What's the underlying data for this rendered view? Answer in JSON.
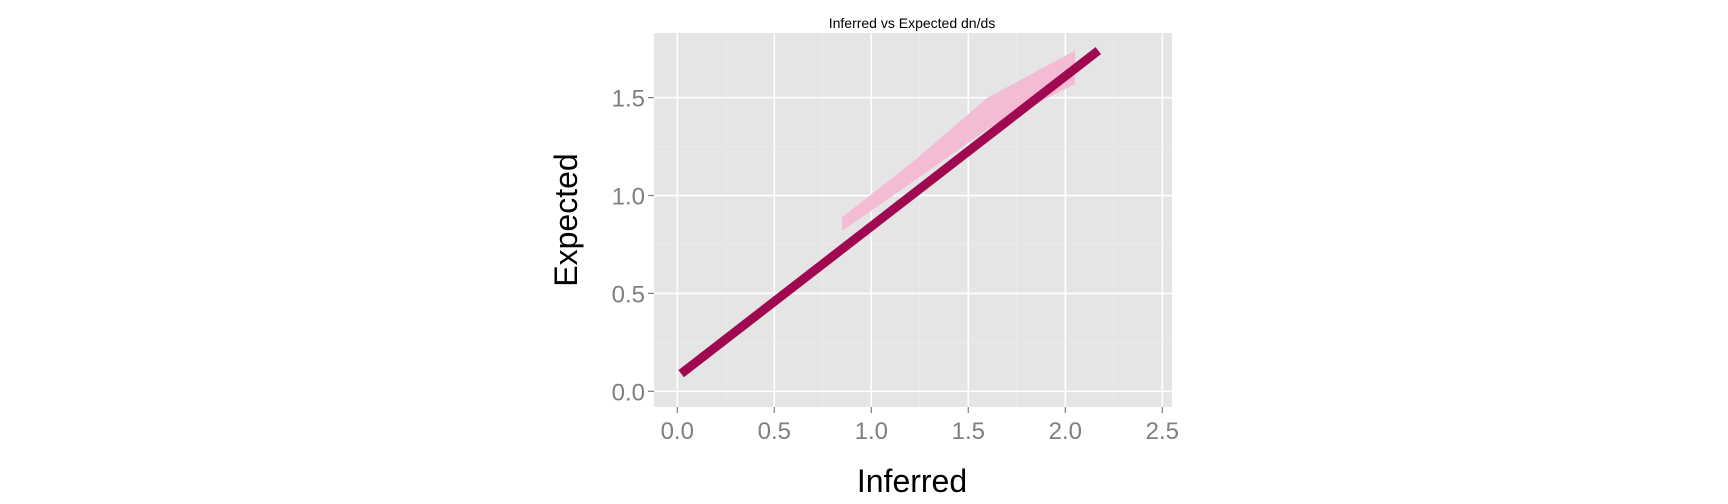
{
  "chart_data": {
    "type": "line",
    "title": "Inferred vs Expected dn/ds",
    "xlabel": "Inferred",
    "ylabel": "Expected",
    "xlim": [
      -0.12,
      2.55
    ],
    "ylim": [
      -0.08,
      1.83
    ],
    "x_ticks": [
      0.0,
      0.5,
      1.0,
      1.5,
      2.0,
      2.5
    ],
    "x_tick_labels": [
      "0.0",
      "0.5",
      "1.0",
      "1.5",
      "2.0",
      "2.5"
    ],
    "y_ticks": [
      0.0,
      0.5,
      1.0,
      1.5
    ],
    "y_tick_labels": [
      "0.0",
      "0.5",
      "1.0",
      "1.5"
    ],
    "x_minor_ticks": [
      0.25,
      0.75,
      1.25,
      1.75,
      2.25
    ],
    "y_minor_ticks": [
      0.25,
      0.75,
      1.25
    ],
    "grid": true,
    "series": [
      {
        "color": "#a0094f",
        "x": [
          0.02,
          2.17
        ],
        "y": [
          0.09,
          1.74
        ]
      }
    ],
    "ribbon": {
      "color": "#f4b6d2",
      "x": [
        0.85,
        1.2,
        1.6,
        2.05
      ],
      "lower": [
        0.82,
        1.06,
        1.34,
        1.57
      ],
      "upper": [
        0.89,
        1.16,
        1.5,
        1.74
      ]
    },
    "colors": {
      "panel_background": "#e5e5e5",
      "major_grid": "#ffffff",
      "minor_grid": "#ebebeb",
      "tick_label": "#7f7f7f",
      "tick_mark": "#7f7f7f"
    }
  }
}
